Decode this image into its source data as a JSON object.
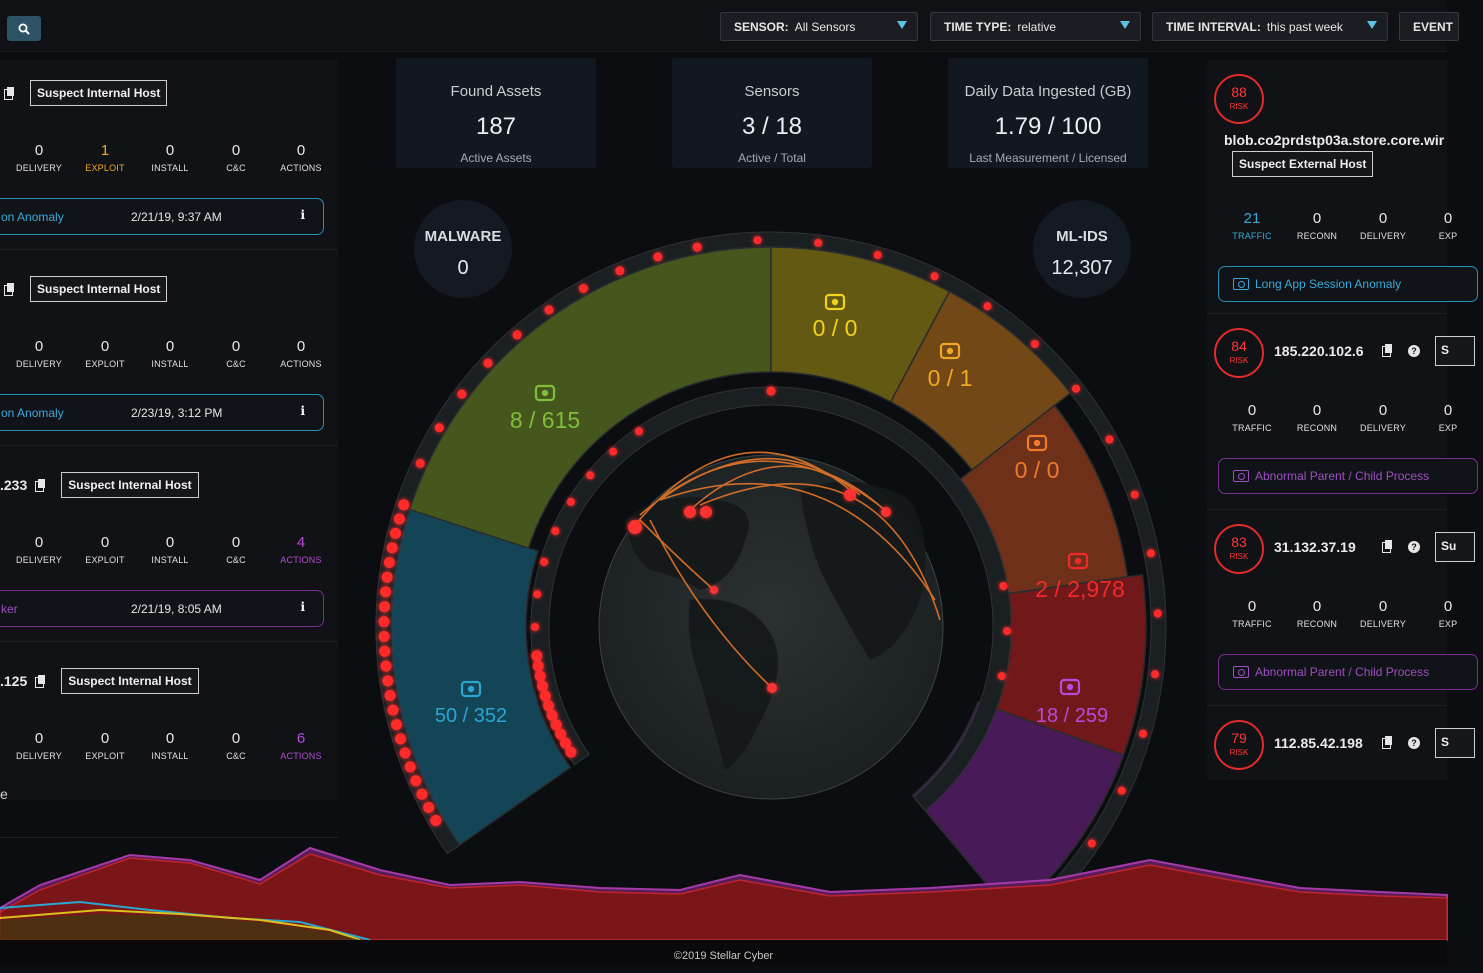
{
  "filters": {
    "sensor": {
      "label": "SENSOR:",
      "value": "All Sensors"
    },
    "time_type": {
      "label": "TIME TYPE:",
      "value": "relative"
    },
    "time_interval": {
      "label": "TIME INTERVAL:",
      "value": "this past week"
    },
    "event": {
      "label": "EVENT"
    }
  },
  "left_cards": [
    {
      "ip": "",
      "tag": "Suspect Internal Host",
      "stats": [
        {
          "value": "0",
          "label": "DELIVERY"
        },
        {
          "value": "1",
          "label": "EXPLOIT"
        },
        {
          "value": "0",
          "label": "INSTALL"
        },
        {
          "value": "0",
          "label": "C&C"
        },
        {
          "value": "0",
          "label": "ACTIONS"
        }
      ],
      "alert": {
        "text": "on Anomaly",
        "time": "2/21/19, 9:37 AM",
        "info": "i"
      }
    },
    {
      "ip": "",
      "tag": "Suspect Internal Host",
      "stats": [
        {
          "value": "0",
          "label": "DELIVERY"
        },
        {
          "value": "0",
          "label": "EXPLOIT"
        },
        {
          "value": "0",
          "label": "INSTALL"
        },
        {
          "value": "0",
          "label": "C&C"
        },
        {
          "value": "0",
          "label": "ACTIONS"
        }
      ],
      "alert": {
        "text": "on Anomaly",
        "time": "2/23/19, 3:12 PM",
        "info": "i"
      }
    },
    {
      "ip": ".233",
      "tag": "Suspect Internal Host",
      "stats": [
        {
          "value": "0",
          "label": "DELIVERY"
        },
        {
          "value": "0",
          "label": "EXPLOIT"
        },
        {
          "value": "0",
          "label": "INSTALL"
        },
        {
          "value": "0",
          "label": "C&C"
        },
        {
          "value": "4",
          "label": "ACTIONS"
        }
      ],
      "alert": {
        "text": "ker",
        "time": "2/21/19, 8:05 AM",
        "info": "i"
      }
    },
    {
      "ip": ".125",
      "tag": "Suspect Internal Host",
      "stats": [
        {
          "value": "0",
          "label": "DELIVERY"
        },
        {
          "value": "0",
          "label": "EXPLOIT"
        },
        {
          "value": "0",
          "label": "INSTALL"
        },
        {
          "value": "0",
          "label": "C&C"
        },
        {
          "value": "6",
          "label": "ACTIONS"
        }
      ]
    }
  ],
  "left_stray_text": "e",
  "kpis": [
    {
      "title": "Found Assets",
      "value": "187",
      "sub": "Active Assets"
    },
    {
      "title": "Sensors",
      "value": "3 / 18",
      "sub": "Active / Total"
    },
    {
      "title": "Daily Data Ingested (GB)",
      "value": "1.79 / 100",
      "sub": "Last Measurement / Licensed"
    }
  ],
  "malware": {
    "title": "MALWARE",
    "value": "0"
  },
  "mlids": {
    "title": "ML-IDS",
    "value": "12,307"
  },
  "gauge": {
    "segments": [
      {
        "name": "recon",
        "value": "8 / 615",
        "color": "#7fbf3a",
        "icon": "binoculars-icon"
      },
      {
        "name": "delivery",
        "value": "0 / 0",
        "color": "#f2d21c",
        "icon": "envelope-icon"
      },
      {
        "name": "exploit",
        "value": "0 / 1",
        "color": "#f0a824",
        "icon": "key-icon"
      },
      {
        "name": "install",
        "value": "0 / 0",
        "color": "#f07a2a",
        "icon": "inbox-icon"
      },
      {
        "name": "cc",
        "value": "2 / 2,978",
        "color": "#f02a2a",
        "icon": "target-icon"
      },
      {
        "name": "actions",
        "value": "18 / 259",
        "color": "#b54bd9",
        "icon": "camera-icon"
      },
      {
        "name": "traffic",
        "value": "50 / 352",
        "color": "#2aa6d0",
        "icon": "sensor-icon"
      }
    ]
  },
  "right_cards": [
    {
      "risk": "88",
      "risk_label": "RISK",
      "host": "blob.co2prdstp03a.store.core.wir",
      "tag": "Suspect External Host",
      "stats": [
        {
          "value": "21",
          "label": "TRAFFIC"
        },
        {
          "value": "0",
          "label": "RECONN"
        },
        {
          "value": "0",
          "label": "DELIVERY"
        },
        {
          "value": "0",
          "label": "EXP"
        }
      ],
      "alert": "Long App Session Anomaly"
    },
    {
      "risk": "84",
      "risk_label": "RISK",
      "host": "185.220.102.6",
      "edge_tag": "S",
      "stats": [
        {
          "value": "0",
          "label": "TRAFFIC"
        },
        {
          "value": "0",
          "label": "RECONN"
        },
        {
          "value": "0",
          "label": "DELIVERY"
        },
        {
          "value": "0",
          "label": "EXP"
        }
      ],
      "alert": "Abnormal Parent / Child Process"
    },
    {
      "risk": "83",
      "risk_label": "RISK",
      "host": "31.132.37.19",
      "edge_tag": "Su",
      "stats": [
        {
          "value": "0",
          "label": "TRAFFIC"
        },
        {
          "value": "0",
          "label": "RECONN"
        },
        {
          "value": "0",
          "label": "DELIVERY"
        },
        {
          "value": "0",
          "label": "EXP"
        }
      ],
      "alert": "Abnormal Parent / Child Process"
    },
    {
      "risk": "79",
      "risk_label": "RISK",
      "host": "112.85.42.198",
      "edge_tag": "S"
    }
  ],
  "help_icon": "?",
  "footer": "©2019 Stellar Cyber"
}
